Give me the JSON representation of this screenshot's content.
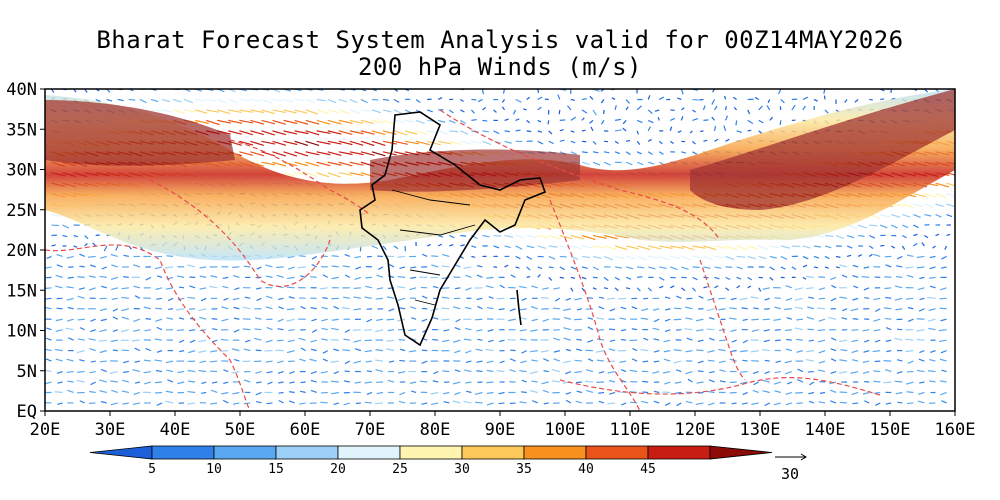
{
  "title": "Bharat Forecast System Analysis valid for 00Z14MAY2026",
  "subtitle": "200 hPa Winds (m/s)",
  "map": {
    "lon_range": [
      20,
      160
    ],
    "lat_range": [
      0,
      40
    ],
    "lat_labels": [
      "EQ",
      "5N",
      "10N",
      "15N",
      "20N",
      "25N",
      "30N",
      "35N",
      "40N"
    ],
    "lon_labels": [
      "20E",
      "30E",
      "40E",
      "50E",
      "60E",
      "70E",
      "80E",
      "90E",
      "100E",
      "110E",
      "120E",
      "130E",
      "140E",
      "150E",
      "160E"
    ],
    "features": {
      "subtropical_jet_core": "west-southwest winds > 45 m/s along 25N-35N",
      "tropical_easterlies": "south of 20N, 5-20 m/s"
    },
    "colors": {
      "country_borders": "#e84a4a",
      "india_outline": "#000000"
    }
  },
  "colorbar": {
    "labels": [
      "5",
      "10",
      "15",
      "20",
      "25",
      "30",
      "35",
      "40",
      "45"
    ],
    "colors": [
      "#1c5fd8",
      "#2f80e8",
      "#5aa8f0",
      "#9cd0f7",
      "#dff4fb",
      "#fff5b0",
      "#fdc85a",
      "#f8901e",
      "#e8541a",
      "#c81d12",
      "#8c0a07"
    ]
  },
  "reference_vector": {
    "label": "30",
    "icon": "arrow-right-icon"
  }
}
